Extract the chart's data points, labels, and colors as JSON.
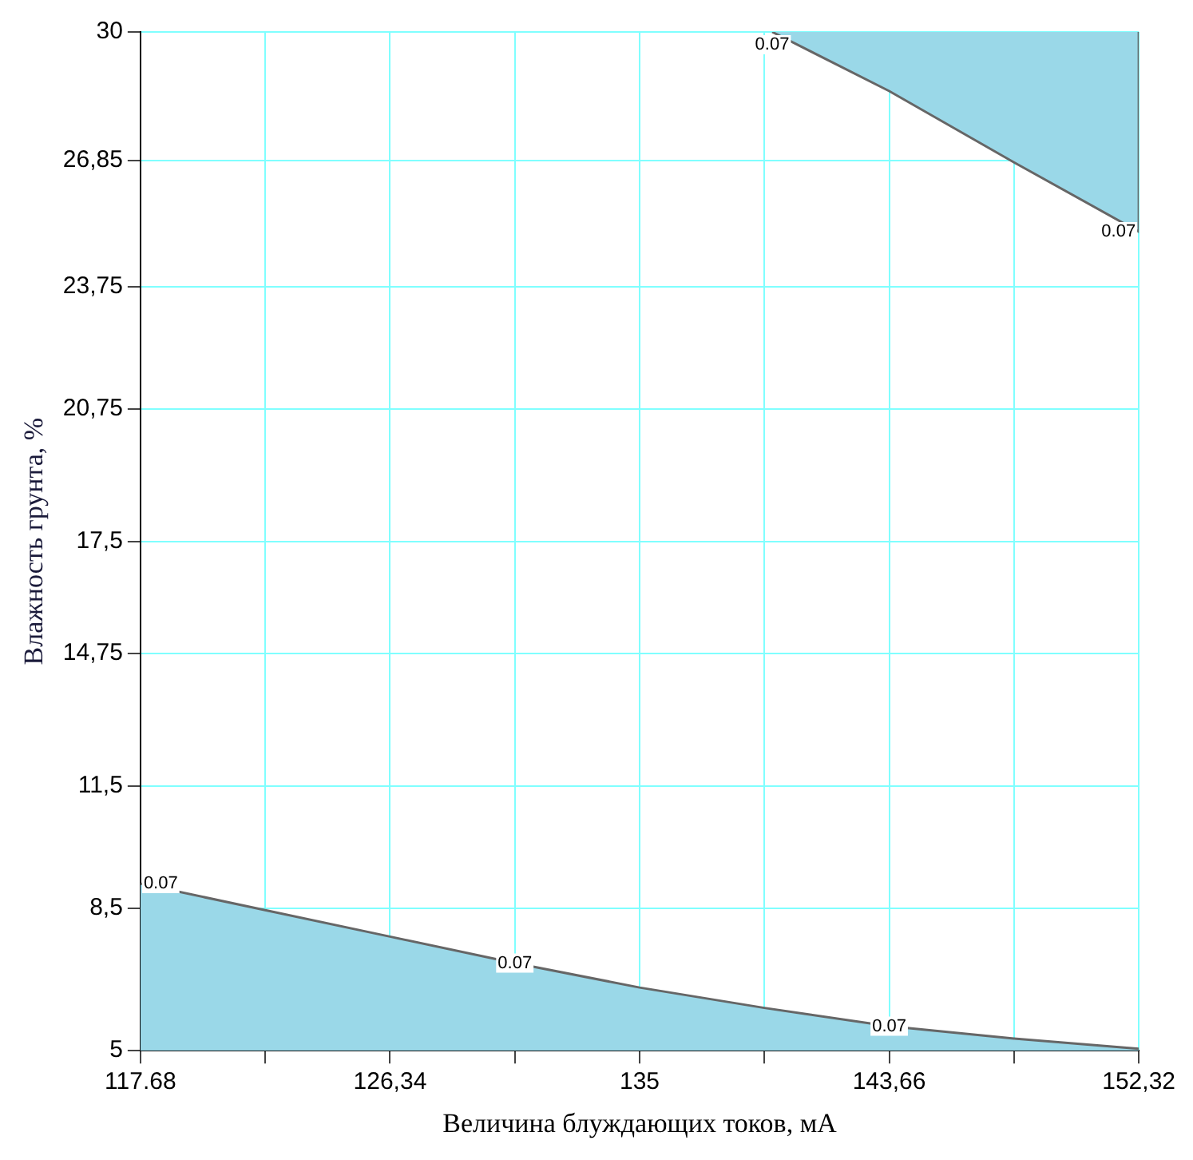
{
  "chart_data": {
    "type": "area",
    "xlabel": "Величина блуждающих токов, мА",
    "ylabel": "Влажность грунта, %",
    "xlim": [
      117.68,
      152.32
    ],
    "xticks": [
      117.68,
      {
        "value": 122.01,
        "label": null
      },
      {
        "value": 126.34,
        "label": "126,34"
      },
      {
        "value": 130.67,
        "label": null
      },
      135,
      {
        "value": 139.33,
        "label": null
      },
      {
        "value": 143.66,
        "label": "143,66"
      },
      {
        "value": 147.99,
        "label": null
      },
      {
        "value": 152.32,
        "label": "152,32"
      }
    ],
    "ylim": [
      5,
      30
    ],
    "yticks": [
      5,
      {
        "value": 8.5,
        "label": "8,5"
      },
      {
        "value": 11.5,
        "label": "11,5"
      },
      {
        "value": 14.75,
        "label": "14,75"
      },
      {
        "value": 17.5,
        "label": "17,5"
      },
      {
        "value": 20.75,
        "label": "20,75"
      },
      {
        "value": 23.75,
        "label": "23,75"
      },
      {
        "value": 26.85,
        "label": "26,85"
      },
      30
    ],
    "grid": true,
    "series": [
      {
        "color": "#9ad8e8",
        "x": [
          117.68,
          122.01,
          126.34,
          130.67,
          135,
          139.33,
          143.66,
          147.99,
          152.32
        ],
        "values": [
          9.1,
          8.45,
          7.8,
          7.15,
          6.55,
          6.05,
          5.6,
          5.3,
          5.05
        ]
      },
      {
        "color": "#9ad8e8",
        "x": [
          139.6,
          143.66,
          147.99,
          152.32,
          152.32
        ],
        "values": [
          30,
          28.55,
          26.8,
          25.1,
          30
        ]
      }
    ],
    "annotations": [
      {
        "text": "0.07",
        "x": 117.68,
        "y": 9.1
      },
      {
        "text": "0.07",
        "x": 130.67,
        "y": 7.15
      },
      {
        "text": "0.07",
        "x": 143.66,
        "y": 5.6
      },
      {
        "text": "0.07",
        "x": 139.6,
        "y": 30
      },
      {
        "text": "0.07",
        "x": 152.32,
        "y": 25.1
      }
    ]
  }
}
